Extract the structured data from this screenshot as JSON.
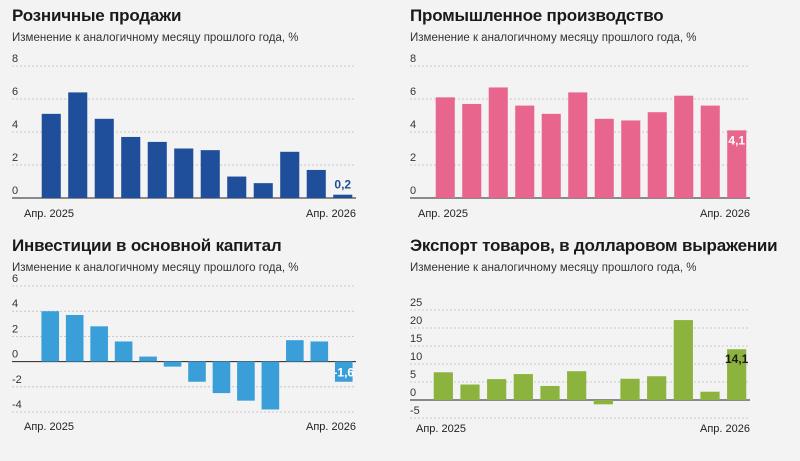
{
  "chart_data": [
    {
      "type": "bar",
      "title": "Розничные продажи",
      "subtitle": "Изменение к аналогичному месяцу прошлого года, %",
      "x_start_label": "Апр. 2025",
      "x_end_label": "Апр. 2026",
      "values": [
        5.1,
        6.4,
        4.8,
        3.7,
        3.4,
        3.0,
        2.9,
        1.3,
        0.9,
        2.8,
        1.7,
        0.2
      ],
      "last_label": "0,2",
      "yticks": [
        "8",
        "6",
        "4",
        "2",
        "0"
      ],
      "ylim": [
        0,
        8
      ],
      "color": "#1f4e9a",
      "last_label_color": "#1f4e9a"
    },
    {
      "type": "bar",
      "title": "Промышленное производство",
      "subtitle": "Изменение к аналогичному месяцу прошлого года, %",
      "x_start_label": "Апр. 2025",
      "x_end_label": "Апр. 2026",
      "values": [
        6.1,
        5.7,
        6.7,
        5.6,
        5.1,
        6.4,
        4.8,
        4.7,
        5.2,
        6.2,
        5.6,
        4.1
      ],
      "last_label": "4,1",
      "yticks": [
        "8",
        "6",
        "4",
        "2",
        "0"
      ],
      "ylim": [
        0,
        8
      ],
      "color": "#e8668e",
      "last_label_color": "#ffffff"
    },
    {
      "type": "bar",
      "title": "Инвестиции в основной капитал",
      "subtitle": "Изменение к аналогичному месяцу прошлого года, %",
      "x_start_label": "Апр. 2025",
      "x_end_label": "Апр. 2026",
      "values": [
        4.0,
        3.7,
        2.8,
        1.6,
        0.4,
        -0.4,
        -1.6,
        -2.5,
        -3.1,
        -3.8,
        1.7,
        1.6,
        -1.6
      ],
      "last_label": "-1,6",
      "yticks": [
        "6",
        "4",
        "2",
        "0",
        "-2",
        "-4"
      ],
      "ylim": [
        -4,
        6
      ],
      "color": "#3a9fd9",
      "last_label_color": "#ffffff"
    },
    {
      "type": "bar",
      "title": "Экспорт товаров, в долларовом выражении",
      "subtitle": "Изменение к аналогичному месяцу прошлого года, %",
      "x_start_label": "Апр. 2025",
      "x_end_label": "Апр. 2026",
      "values": [
        7.7,
        4.3,
        5.8,
        7.2,
        3.9,
        8.0,
        -1.2,
        5.9,
        6.6,
        22.2,
        2.3,
        14.1
      ],
      "last_label": "14,1",
      "yticks": [
        "25",
        "20",
        "15",
        "10",
        "5",
        "0",
        "-5"
      ],
      "ylim": [
        -5,
        25
      ],
      "color": "#8db33f",
      "last_label_color": "#1a1a1a"
    }
  ]
}
